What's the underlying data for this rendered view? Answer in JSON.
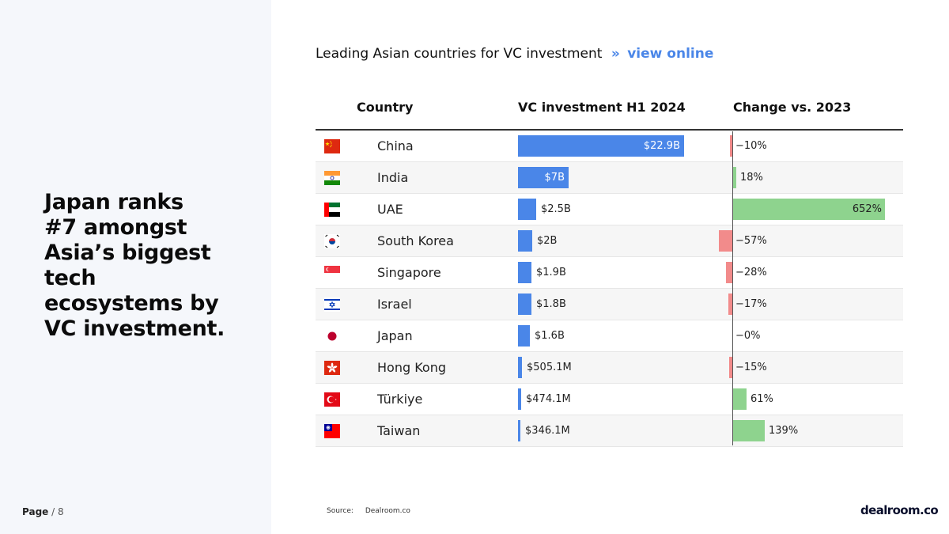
{
  "headline": [
    "Japan ranks",
    "#7 amongst",
    "Asia’s biggest tech",
    "ecosystems by",
    "VC investment."
  ],
  "page": {
    "label": "Page",
    "number": "/ 8"
  },
  "chart_title": "Leading Asian countries for VC investment",
  "view_link": {
    "arrow": "»",
    "label": "view online"
  },
  "source": {
    "label": "Source:",
    "value": "Dealroom.co"
  },
  "logo": "dealroom.co",
  "colors": {
    "accent": "#4a86e8",
    "positive": "#8ed38e",
    "negative": "#f28b8b"
  },
  "chart_data": {
    "type": "table",
    "columns": [
      "Country",
      "VC investment H1 2024",
      "Change vs. 2023"
    ],
    "rows": [
      {
        "flag": "china-flag",
        "country": "China",
        "vc_label": "$22.9B",
        "vc_value": 22.9,
        "change_label": "−10%",
        "change_value": -10
      },
      {
        "flag": "india-flag",
        "country": "India",
        "vc_label": "$7B",
        "vc_value": 7.0,
        "change_label": "18%",
        "change_value": 18
      },
      {
        "flag": "uae-flag",
        "country": "UAE",
        "vc_label": "$2.5B",
        "vc_value": 2.5,
        "change_label": "652%",
        "change_value": 652
      },
      {
        "flag": "south-korea-flag",
        "country": "South Korea",
        "vc_label": "$2B",
        "vc_value": 2.0,
        "change_label": "−57%",
        "change_value": -57
      },
      {
        "flag": "singapore-flag",
        "country": "Singapore",
        "vc_label": "$1.9B",
        "vc_value": 1.9,
        "change_label": "−28%",
        "change_value": -28
      },
      {
        "flag": "israel-flag",
        "country": "Israel",
        "vc_label": "$1.8B",
        "vc_value": 1.8,
        "change_label": "−17%",
        "change_value": -17
      },
      {
        "flag": "japan-flag",
        "country": "Japan",
        "vc_label": "$1.6B",
        "vc_value": 1.6,
        "change_label": "−0%",
        "change_value": 0
      },
      {
        "flag": "hong-kong-flag",
        "country": "Hong Kong",
        "vc_label": "$505.1M",
        "vc_value": 0.5051,
        "change_label": "−15%",
        "change_value": -15
      },
      {
        "flag": "turkiye-flag",
        "country": "Türkiye",
        "vc_label": "$474.1M",
        "vc_value": 0.4741,
        "change_label": "61%",
        "change_value": 61
      },
      {
        "flag": "taiwan-flag",
        "country": "Taiwan",
        "vc_label": "$346.1M",
        "vc_value": 0.3461,
        "change_label": "139%",
        "change_value": 139
      }
    ]
  }
}
